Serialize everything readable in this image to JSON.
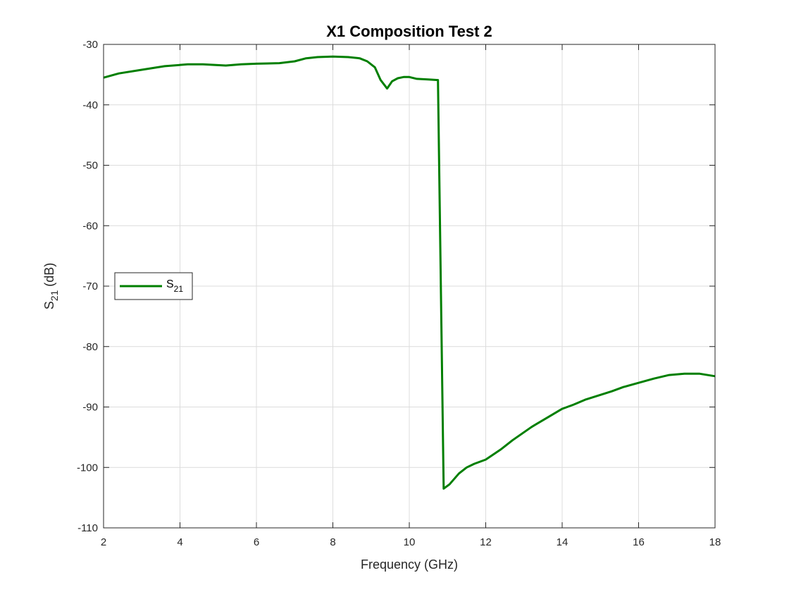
{
  "chart_data": {
    "type": "line",
    "title": "X1 Composition Test 2",
    "xlabel": "Frequency (GHz)",
    "ylabel": {
      "base": "S",
      "sub": "21",
      "suffix": " (dB)"
    },
    "xlim": [
      2,
      18
    ],
    "ylim": [
      -110,
      -30
    ],
    "xticks": [
      2,
      4,
      6,
      8,
      10,
      12,
      14,
      16,
      18
    ],
    "yticks": [
      -30,
      -40,
      -50,
      -60,
      -70,
      -80,
      -90,
      -100,
      -110
    ],
    "grid": true,
    "legend_position": "left-middle",
    "series": [
      {
        "name": {
          "base": "S",
          "sub": "21"
        },
        "color": "#007f00",
        "x": [
          2.0,
          2.4,
          3.0,
          3.6,
          4.2,
          4.6,
          5.2,
          5.6,
          6.0,
          6.6,
          7.0,
          7.3,
          7.6,
          8.0,
          8.4,
          8.7,
          8.9,
          9.1,
          9.25,
          9.42,
          9.55,
          9.7,
          9.85,
          10.0,
          10.2,
          10.5,
          10.75,
          10.9,
          11.05,
          11.3,
          11.5,
          11.7,
          12.0,
          12.4,
          12.7,
          13.2,
          13.6,
          14.0,
          14.3,
          14.6,
          15.0,
          15.3,
          15.6,
          16.0,
          16.4,
          16.8,
          17.2,
          17.6,
          18.0
        ],
        "y": [
          -35.5,
          -34.8,
          -34.2,
          -33.6,
          -33.3,
          -33.3,
          -33.5,
          -33.3,
          -33.2,
          -33.1,
          -32.8,
          -32.3,
          -32.1,
          -32.0,
          -32.1,
          -32.3,
          -32.8,
          -33.8,
          -35.9,
          -37.3,
          -36.1,
          -35.6,
          -35.4,
          -35.4,
          -35.7,
          -35.8,
          -35.9,
          -103.5,
          -102.8,
          -101.0,
          -100.0,
          -99.4,
          -98.7,
          -97.0,
          -95.5,
          -93.3,
          -91.8,
          -90.3,
          -89.6,
          -88.8,
          -88.0,
          -87.4,
          -86.7,
          -86.0,
          -85.3,
          -84.7,
          -84.5,
          -84.5,
          -84.9
        ]
      }
    ]
  }
}
